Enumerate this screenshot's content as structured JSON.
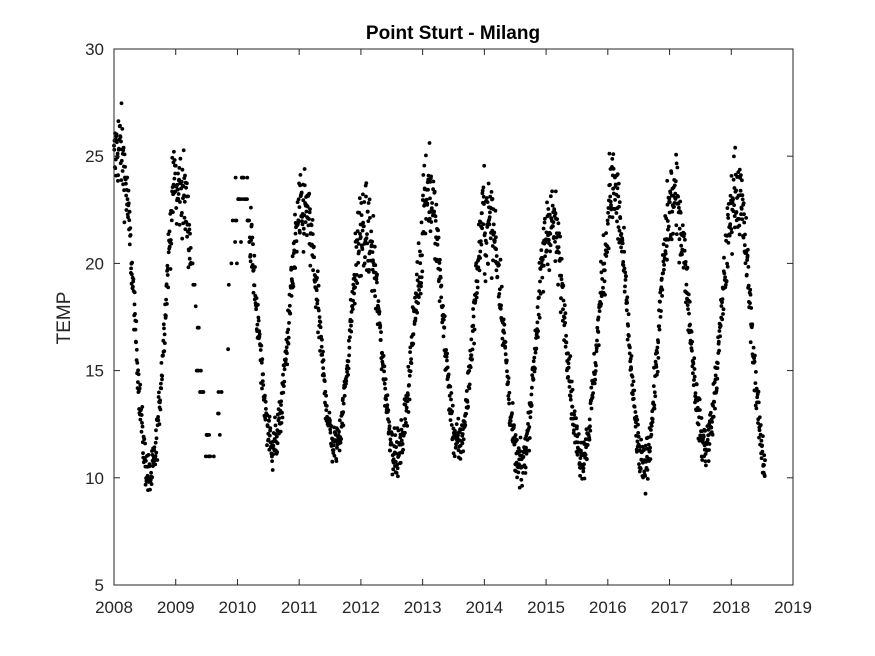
{
  "chart_data": {
    "type": "scatter",
    "title": "Point Sturt - Milang",
    "xlabel": "",
    "ylabel": "TEMP",
    "xlim": [
      2008,
      2019
    ],
    "ylim": [
      5,
      30
    ],
    "x_ticks": [
      "2008",
      "2009",
      "2010",
      "2011",
      "2012",
      "2013",
      "2014",
      "2015",
      "2016",
      "2017",
      "2018",
      "2019"
    ],
    "y_ticks": [
      "5",
      "10",
      "15",
      "20",
      "25",
      "30"
    ],
    "grid": false,
    "legend": "none",
    "marker_color": "#000000",
    "series": [
      {
        "description": "seasonal water temperature readings, approximate",
        "annual_cycle": [
          {
            "year": 2008,
            "peak": 25.5,
            "trough": 10.0
          },
          {
            "year": 2009,
            "peak": 23.5,
            "trough": 11.0
          },
          {
            "year": 2010,
            "peak": 23.0,
            "trough": 11.5
          },
          {
            "year": 2011,
            "peak": 22.5,
            "trough": 11.5
          },
          {
            "year": 2012,
            "peak": 21.5,
            "trough": 11.0
          },
          {
            "year": 2013,
            "peak": 23.5,
            "trough": 11.5
          },
          {
            "year": 2014,
            "peak": 22.0,
            "trough": 10.5
          },
          {
            "year": 2015,
            "peak": 22.0,
            "trough": 11.0
          },
          {
            "year": 2016,
            "peak": 23.5,
            "trough": 10.5
          },
          {
            "year": 2017,
            "peak": 23.0,
            "trough": 11.5
          },
          {
            "year": 2018,
            "peak": 23.5,
            "trough": 10.5
          }
        ],
        "x_range": [
          2008.0,
          2018.55
        ],
        "gap_sparse_range": [
          2009.25,
          2010.2
        ]
      }
    ]
  }
}
